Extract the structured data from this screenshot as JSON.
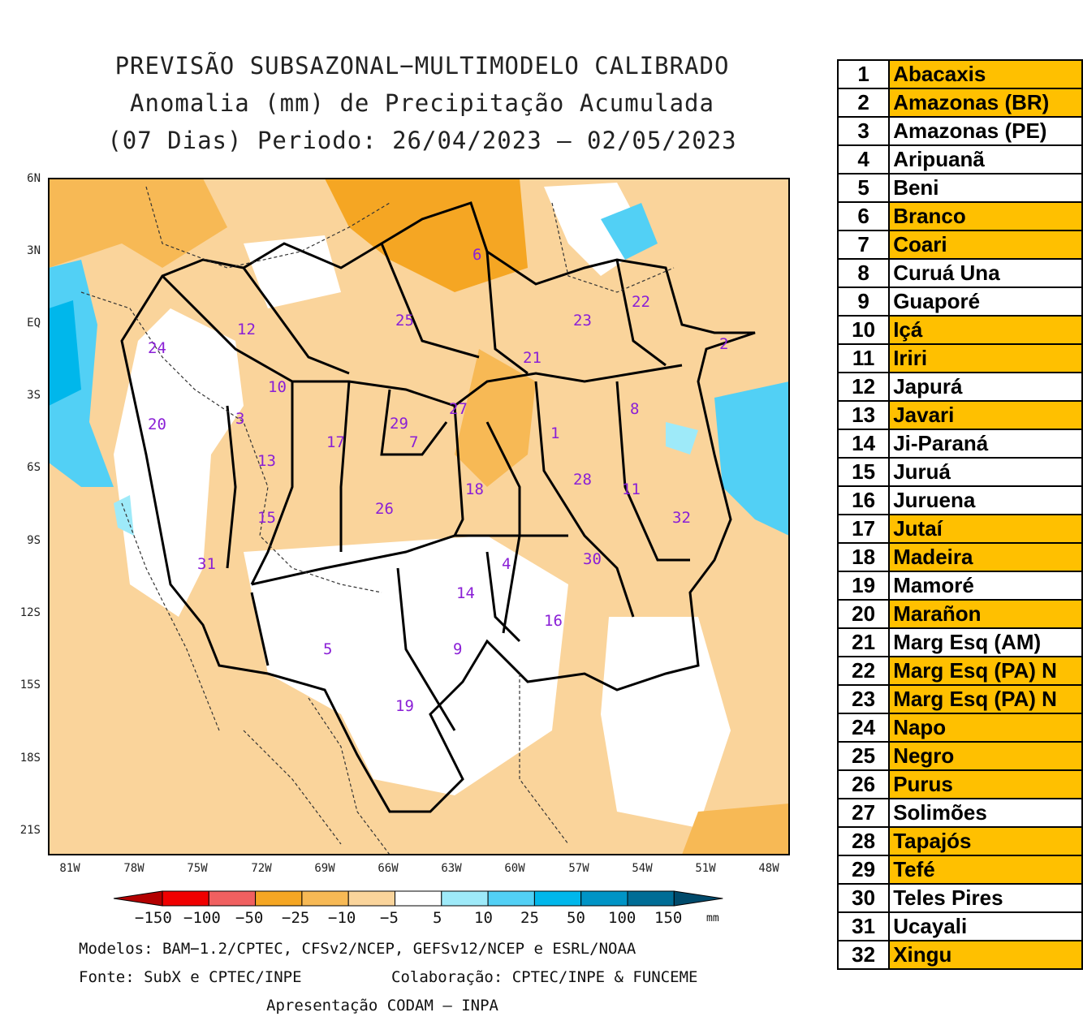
{
  "header": {
    "line1": "PREVISÃO SUBSAZONAL−MULTIMODELO CALIBRADO",
    "line2": "Anomalia (mm) de Precipitação Acumulada",
    "line3": "(07 Dias) Periodo: 26/04/2023 – 02/05/2023"
  },
  "axes": {
    "lat": [
      "6N",
      "3N",
      "EQ",
      "3S",
      "6S",
      "9S",
      "12S",
      "15S",
      "18S",
      "21S"
    ],
    "lon": [
      "81W",
      "78W",
      "75W",
      "72W",
      "69W",
      "66W",
      "63W",
      "60W",
      "57W",
      "54W",
      "51W",
      "48W"
    ]
  },
  "basin_labels": [
    "1",
    "2",
    "3",
    "4",
    "5",
    "6",
    "7",
    "8",
    "9",
    "10",
    "11",
    "12",
    "13",
    "14",
    "15",
    "16",
    "17",
    "18",
    "19",
    "20",
    "21",
    "22",
    "23",
    "24",
    "25",
    "26",
    "27",
    "28",
    "29",
    "30",
    "31",
    "32"
  ],
  "legend": {
    "ticks": [
      "−150",
      "−100",
      "−50",
      "−25",
      "−10",
      "−5",
      "5",
      "10",
      "25",
      "50",
      "100",
      "150"
    ],
    "unit": "mm",
    "colors": [
      "#b30000",
      "#f00000",
      "#f06060",
      "#f5a623",
      "#f7b955",
      "#fad49b",
      "#ffffff",
      "#9eeaf9",
      "#52d0f5",
      "#00b7eb",
      "#0094c6",
      "#006d96",
      "#004a6b"
    ]
  },
  "footer": {
    "models": "Modelos: BAM−1.2/CPTEC, CFSv2/NCEP, GEFSv12/NCEP e ESRL/NOAA",
    "source": "Fonte: SubX e CPTEC/INPE",
    "collab": "Colaboração: CPTEC/INPE & FUNCEME",
    "presentation": "Apresentação CODAM – INPA"
  },
  "basins_table": [
    {
      "num": "1",
      "name": "Abacaxis",
      "highlight": true
    },
    {
      "num": "2",
      "name": "Amazonas (BR)",
      "highlight": true
    },
    {
      "num": "3",
      "name": "Amazonas (PE)",
      "highlight": false
    },
    {
      "num": "4",
      "name": "Aripuanã",
      "highlight": false
    },
    {
      "num": "5",
      "name": "Beni",
      "highlight": false
    },
    {
      "num": "6",
      "name": "Branco",
      "highlight": true
    },
    {
      "num": "7",
      "name": "Coari",
      "highlight": true
    },
    {
      "num": "8",
      "name": "Curuá Una",
      "highlight": false
    },
    {
      "num": "9",
      "name": "Guaporé",
      "highlight": false
    },
    {
      "num": "10",
      "name": "Içá",
      "highlight": true
    },
    {
      "num": "11",
      "name": "Iriri",
      "highlight": true
    },
    {
      "num": "12",
      "name": "Japurá",
      "highlight": false
    },
    {
      "num": "13",
      "name": "Javari",
      "highlight": true
    },
    {
      "num": "14",
      "name": "Ji-Paraná",
      "highlight": false
    },
    {
      "num": "15",
      "name": "Juruá",
      "highlight": false
    },
    {
      "num": "16",
      "name": "Juruena",
      "highlight": false
    },
    {
      "num": "17",
      "name": "Jutaí",
      "highlight": true
    },
    {
      "num": "18",
      "name": "Madeira",
      "highlight": true
    },
    {
      "num": "19",
      "name": "Mamoré",
      "highlight": false
    },
    {
      "num": "20",
      "name": "Marañon",
      "highlight": true
    },
    {
      "num": "21",
      "name": "Marg Esq (AM)",
      "highlight": false
    },
    {
      "num": "22",
      "name": "Marg Esq (PA) N",
      "highlight": true
    },
    {
      "num": "23",
      "name": "Marg Esq (PA) N",
      "highlight": true
    },
    {
      "num": "24",
      "name": "Napo",
      "highlight": true
    },
    {
      "num": "25",
      "name": "Negro",
      "highlight": true
    },
    {
      "num": "26",
      "name": "Purus",
      "highlight": true
    },
    {
      "num": "27",
      "name": "Solimões",
      "highlight": false
    },
    {
      "num": "28",
      "name": "Tapajós",
      "highlight": true
    },
    {
      "num": "29",
      "name": "Tefé",
      "highlight": true
    },
    {
      "num": "30",
      "name": "Teles Pires",
      "highlight": false
    },
    {
      "num": "31",
      "name": "Ucayali",
      "highlight": false
    },
    {
      "num": "32",
      "name": "Xingu",
      "highlight": true
    }
  ],
  "colors": {
    "highlight": "#ffc000",
    "plain": "#ffffff"
  }
}
